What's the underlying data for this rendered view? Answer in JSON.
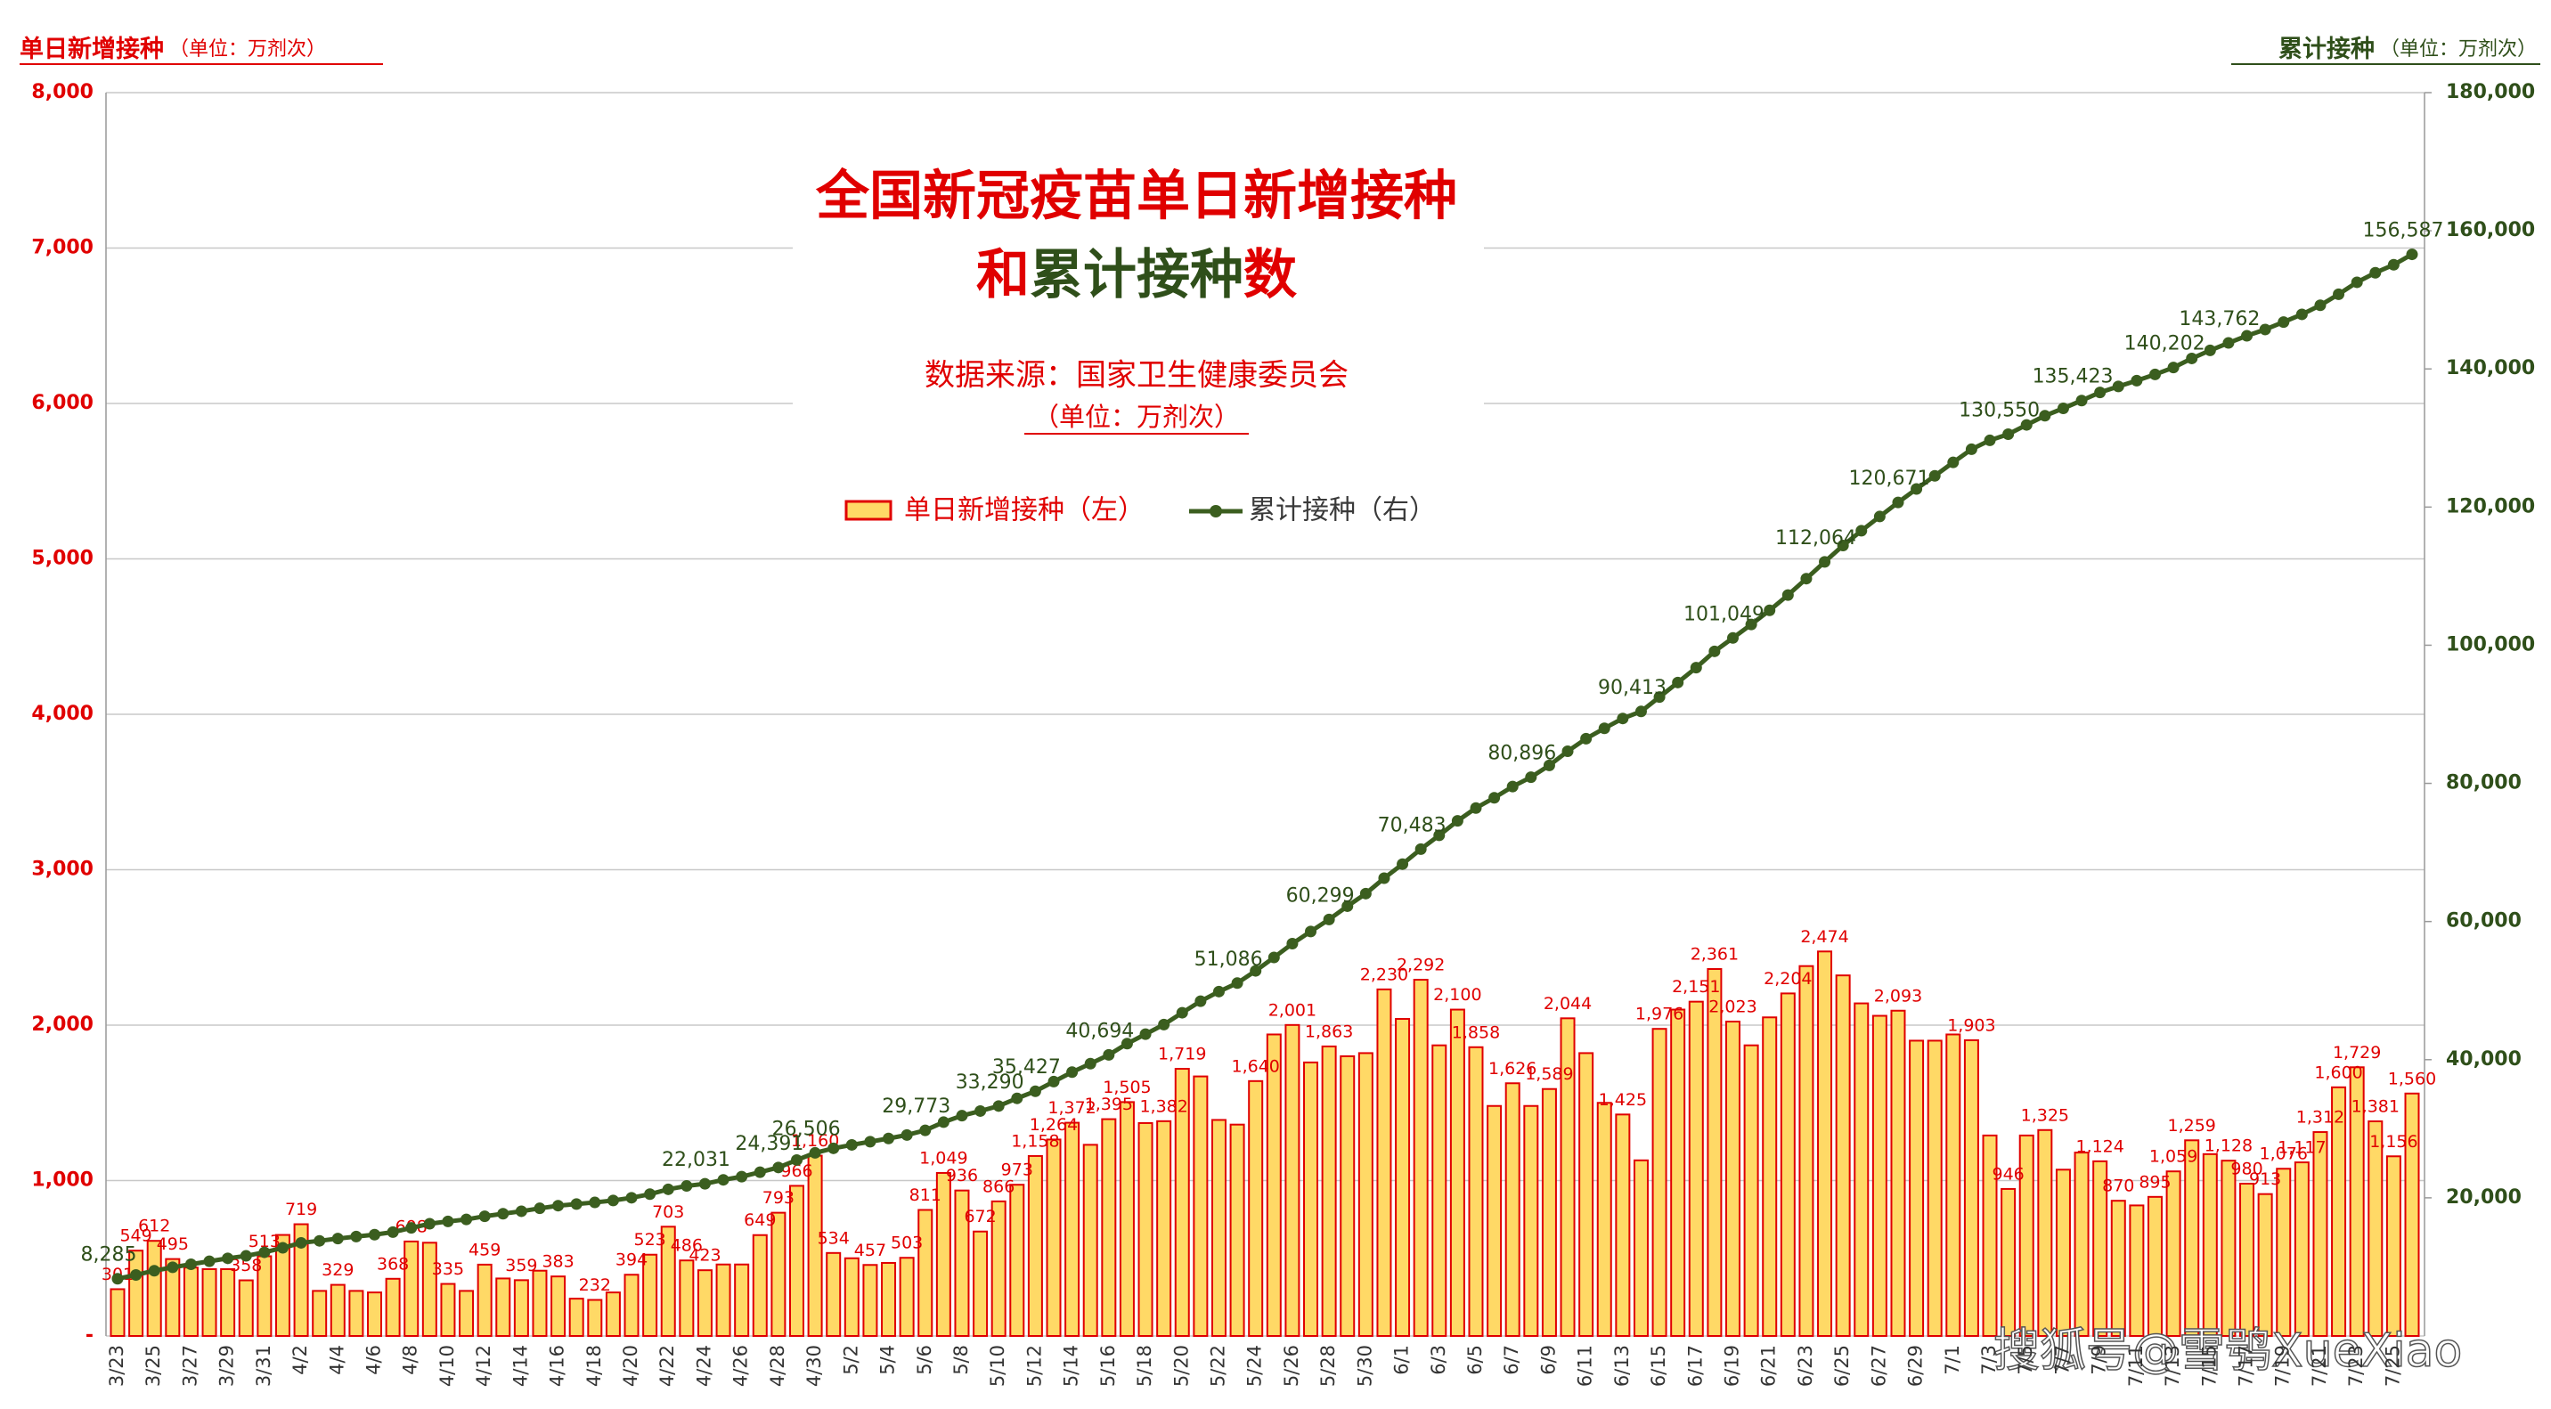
{
  "chart_data": {
    "type": "bar",
    "title": "全国新冠疫苗单日新增接种",
    "title_line2": [
      "和",
      "累计接种",
      "数"
    ],
    "subtitle": "数据来源：国家卫生健康委员会",
    "subtitle_unit": "（单位：万剂次）",
    "left_axis_title": "单日新增接种",
    "left_axis_unit": "（单位：万剂次）",
    "right_axis_title": "累计接种",
    "right_axis_unit": "（单位：万剂次）",
    "watermark": "搜狐号@雪鸮XueXiao",
    "categories": [
      "3/23",
      null,
      "3/25",
      null,
      "3/27",
      null,
      "3/29",
      null,
      "3/31",
      null,
      "4/2",
      null,
      "4/4",
      null,
      "4/6",
      null,
      "4/8",
      null,
      "4/10",
      null,
      "4/12",
      null,
      "4/14",
      null,
      "4/16",
      null,
      "4/18",
      null,
      "4/20",
      null,
      "4/22",
      null,
      "4/24",
      null,
      "4/26",
      null,
      "4/28",
      null,
      "4/30",
      null,
      "5/2",
      null,
      "5/4",
      null,
      "5/6",
      null,
      "5/8",
      null,
      "5/10",
      null,
      "5/12",
      null,
      "5/14",
      null,
      "5/16",
      null,
      "5/18",
      null,
      "5/20",
      null,
      "5/22",
      null,
      "5/24",
      null,
      "5/26",
      null,
      "5/28",
      null,
      "5/30",
      null,
      "6/1",
      null,
      "6/3",
      null,
      "6/5",
      null,
      "6/7",
      null,
      "6/9",
      null,
      "6/11",
      null,
      "6/13",
      null,
      "6/15",
      null,
      "6/17",
      null,
      "6/19",
      null,
      "6/21",
      null,
      "6/23",
      null,
      "6/25",
      null,
      "6/27",
      null,
      "6/29",
      null,
      "7/1",
      null,
      "7/3",
      null,
      "7/5",
      null,
      "7/7",
      null,
      "7/9",
      null,
      "7/11",
      null,
      "7/13",
      null,
      "7/15",
      null,
      "7/17",
      null,
      "7/19",
      null,
      "7/21",
      null,
      "7/23",
      null,
      "7/25",
      null
    ],
    "series": [
      {
        "name": "单日新增接种（左）",
        "type": "bar",
        "color": "#FFD966",
        "edge_color": "#E00000",
        "values": [
          301,
          549,
          612,
          495,
          440,
          430,
          430,
          358,
          513,
          650,
          719,
          290,
          329,
          290,
          280,
          368,
          608,
          600,
          335,
          290,
          459,
          370,
          359,
          420,
          383,
          240,
          232,
          280,
          394,
          523,
          703,
          486,
          423,
          460,
          460,
          649,
          793,
          966,
          1160,
          534,
          500,
          457,
          470,
          503,
          811,
          1049,
          936,
          672,
          866,
          973,
          1158,
          1264,
          1372,
          1230,
          1395,
          1505,
          1370,
          1382,
          1719,
          1670,
          1390,
          1360,
          1640,
          1940,
          2001,
          1760,
          1863,
          1800,
          1820,
          2230,
          2040,
          2292,
          1870,
          2100,
          1858,
          1480,
          1626,
          1480,
          1589,
          2044,
          1820,
          1500,
          1425,
          1130,
          1976,
          2100,
          2151,
          2361,
          2023,
          1870,
          2050,
          2204,
          2380,
          2474,
          2320,
          2140,
          2060,
          2093,
          1900,
          1900,
          1940,
          1903,
          1290,
          946,
          1290,
          1325,
          1070,
          1180,
          1124,
          870,
          840,
          895,
          1059,
          1259,
          1170,
          1128,
          980,
          913,
          1076,
          1117,
          1312,
          1600,
          1729,
          1381,
          1156,
          1560
        ],
        "value_labels": [
          "301",
          "549",
          "612",
          "495",
          null,
          null,
          null,
          "358",
          "513",
          null,
          "719",
          null,
          "329",
          null,
          null,
          "368",
          "608",
          null,
          "335",
          null,
          "459",
          null,
          "359",
          null,
          "383",
          null,
          "232",
          null,
          "394",
          "523",
          "703",
          "486",
          "423",
          null,
          null,
          "649",
          "793",
          "966",
          "1,160",
          "534",
          null,
          "457",
          null,
          "503",
          "811",
          "1,049",
          "936",
          "672",
          "866",
          "973",
          "1,158",
          "1,264",
          "1,372",
          null,
          "1,395",
          "1,505",
          null,
          "1,382",
          "1,719",
          null,
          null,
          null,
          "1,640",
          null,
          "2,001",
          null,
          "1,863",
          null,
          null,
          "2,230",
          null,
          "2,292",
          null,
          "2,100",
          "1,858",
          null,
          "1,626",
          null,
          "1,589",
          "2,044",
          null,
          null,
          "1,425",
          null,
          "1,976",
          null,
          "2,151",
          "2,361",
          "2,023",
          null,
          null,
          "2,204",
          null,
          "2,474",
          null,
          null,
          null,
          "2,093",
          null,
          null,
          null,
          "1,903",
          null,
          "946",
          null,
          "1,325",
          null,
          null,
          "1,124",
          "870",
          null,
          "895",
          "1,059",
          "1,259",
          null,
          "1,128",
          "980",
          "913",
          "1,076",
          "1,117",
          "1,312",
          "1,600",
          "1,729",
          "1,381",
          "1,156",
          "1,560"
        ]
      },
      {
        "name": "累计接种（右）",
        "type": "line",
        "axis": "y2",
        "color": "#3B5E1F",
        "values": [
          8285,
          8834,
          9446,
          9941,
          10381,
          10811,
          11241,
          11599,
          12112,
          12762,
          13481,
          13771,
          14100,
          14390,
          14670,
          15038,
          15646,
          16246,
          16581,
          16871,
          17330,
          17700,
          18059,
          18479,
          18862,
          19102,
          19334,
          19614,
          20008,
          20531,
          21234,
          21720,
          22031,
          22603,
          23063,
          23712,
          24391,
          25471,
          26506,
          27165,
          27665,
          28122,
          28592,
          29095,
          29773,
          30955,
          31891,
          32563,
          33290,
          34402,
          35427,
          36824,
          38196,
          39426,
          40694,
          42326,
          43696,
          45078,
          46797,
          48467,
          49857,
          51086,
          52857,
          54797,
          56798,
          58558,
          60299,
          62221,
          64041,
          66271,
          68311,
          70483,
          72473,
          74573,
          76431,
          77911,
          79537,
          80896,
          82606,
          84650,
          86470,
          87970,
          89395,
          90413,
          92501,
          94601,
          96751,
          99112,
          101049,
          103005,
          105055,
          107259,
          109639,
          112064,
          114433,
          116573,
          118633,
          120671,
          122626,
          124526,
          126466,
          128369,
          129659,
          130550,
          131895,
          133220,
          134290,
          135423,
          136594,
          137464,
          138304,
          139199,
          140202,
          141517,
          142687,
          143762,
          144795,
          145708,
          146784,
          147901,
          149213,
          150813,
          152542,
          153923,
          155079,
          156587
        ],
        "value_labels": [
          "8,285",
          null,
          null,
          null,
          null,
          null,
          null,
          null,
          null,
          null,
          null,
          null,
          null,
          null,
          null,
          null,
          null,
          null,
          null,
          null,
          null,
          null,
          null,
          null,
          null,
          null,
          null,
          null,
          null,
          null,
          null,
          null,
          "22,031",
          null,
          null,
          null,
          "24,391",
          null,
          "26,506",
          null,
          null,
          null,
          null,
          null,
          "29,773",
          null,
          null,
          null,
          "33,290",
          null,
          "35,427",
          null,
          null,
          null,
          "40,694",
          null,
          null,
          null,
          null,
          null,
          null,
          "51,086",
          null,
          null,
          null,
          null,
          "60,299",
          null,
          null,
          null,
          null,
          "70,483",
          null,
          null,
          null,
          null,
          null,
          "80,896",
          null,
          null,
          null,
          null,
          null,
          "90,413",
          null,
          null,
          null,
          null,
          "101,049",
          null,
          null,
          null,
          null,
          "112,064",
          null,
          null,
          null,
          "120,671",
          null,
          null,
          null,
          null,
          null,
          "130,550",
          null,
          null,
          null,
          "135,423",
          null,
          null,
          null,
          null,
          "140,202",
          null,
          null,
          "143,762",
          null,
          null,
          null,
          null,
          null,
          null,
          null,
          null,
          null,
          "156,587"
        ]
      }
    ],
    "ylim": [
      0,
      8000
    ],
    "yticks": [
      {
        "value": 0,
        "label": "-"
      },
      {
        "value": 1000,
        "label": "1,000"
      },
      {
        "value": 2000,
        "label": "2,000"
      },
      {
        "value": 3000,
        "label": "3,000"
      },
      {
        "value": 4000,
        "label": "4,000"
      },
      {
        "value": 5000,
        "label": "5,000"
      },
      {
        "value": 6000,
        "label": "6,000"
      },
      {
        "value": 7000,
        "label": "7,000"
      },
      {
        "value": 8000,
        "label": "8,000"
      }
    ],
    "y2lim": [
      0,
      180000
    ],
    "y2ticks": [
      {
        "value": 20000,
        "label": "20,000"
      },
      {
        "value": 40000,
        "label": "40,000"
      },
      {
        "value": 60000,
        "label": "60,000"
      },
      {
        "value": 80000,
        "label": "80,000"
      },
      {
        "value": 100000,
        "label": "100,000"
      },
      {
        "value": 120000,
        "label": "120,000"
      },
      {
        "value": 140000,
        "label": "140,000"
      },
      {
        "value": 160000,
        "label": "160,000"
      },
      {
        "value": 180000,
        "label": "180,000"
      }
    ],
    "grid": true
  }
}
